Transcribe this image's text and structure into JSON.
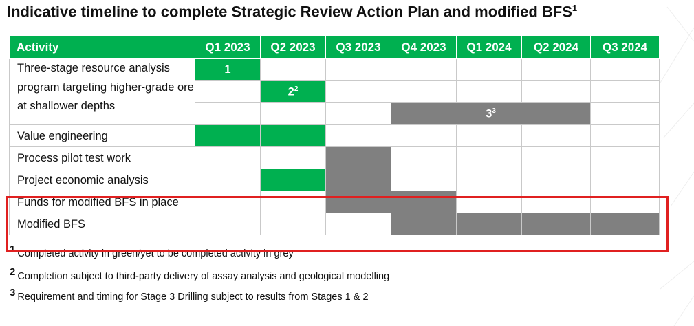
{
  "title": "Indicative timeline to complete Strategic Review Action Plan and modified BFS",
  "title_sup": "1",
  "colors": {
    "completed": "#00b050",
    "pending": "#808080",
    "highlight": "#e02020"
  },
  "table": {
    "header_activity": "Activity",
    "quarters": [
      "Q1 2023",
      "Q2 2023",
      "Q3 2023",
      "Q4 2023",
      "Q1 2024",
      "Q2 2024",
      "Q3 2024"
    ],
    "activities": [
      "Three-stage resource analysis program targeting higher-grade ore at shallower depths",
      "Value engineering",
      "Process pilot test work",
      "Project economic analysis",
      "Funds for modified BFS in place",
      "Modified BFS"
    ],
    "stage_labels": {
      "s1": "1",
      "s2": "2",
      "s2_sup": "2",
      "s3": "3",
      "s3_sup": "3"
    }
  },
  "notes": [
    {
      "num": "1",
      "text": "Completed activity in green/yet to be completed activity in grey"
    },
    {
      "num": "2",
      "text": "Completion subject to third-party delivery of assay analysis and geological modelling"
    },
    {
      "num": "3",
      "text": "Requirement and timing for Stage 3 Drilling subject to results from Stages 1 & 2"
    }
  ]
}
